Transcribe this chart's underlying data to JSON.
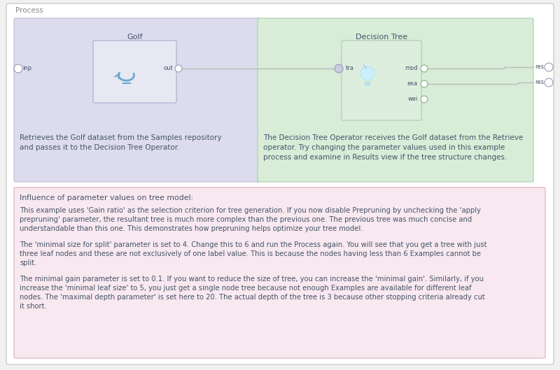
{
  "bg_color": "#f0f0f0",
  "outer_bg": "#ffffff",
  "outer_border": "#cccccc",
  "process_label": "Process",
  "process_label_color": "#888888",
  "left_panel_bg": "#dcdcee",
  "left_panel_border": "#bbbbcc",
  "right_panel_bg": "#d8ecd8",
  "right_panel_border": "#aaccaa",
  "golf_box_bg": "#e8e8f4",
  "golf_box_border": "#aaaacc",
  "golf_label": "Golf",
  "dt_box_bg": "#deeede",
  "dt_box_border": "#aaccaa",
  "dt_label": "Decision Tree",
  "pink_box_bg": "#f8e8f0",
  "pink_box_border": "#ddaabb",
  "text_color": "#445566",
  "text_color_blue": "#5577aa",
  "connector_color": "#bbbbbb",
  "port_fill_lavender": "#ccccdd",
  "port_fill_green": "#aaccaa",
  "port_stroke": "#9999bb",
  "icon_color": "#66aacc",
  "inp_label": "inp",
  "out_label": "out",
  "tra_label": "tra",
  "mod_label": "mod",
  "exa_label": "exa",
  "wei_label": "wei",
  "res1_label": "res",
  "res2_label": "res",
  "golf_desc1": "Retrieves the Golf dataset from the Samples repository",
  "golf_desc2": "and passes it to the Decision Tree Operator.",
  "dt_desc1": "The Decision Tree Operator receives the Golf dataset from the Retrieve",
  "dt_desc2": "operator. Try changing the parameter values used in this example",
  "dt_desc3": "process and examine in Results view if the tree structure changes.",
  "pink_title": "Influence of parameter values on tree model:",
  "pink_para1_lines": [
    "This example uses 'Gain ratio' as the selection criterion for tree generation. If you now disable Prepruning by unchecking the 'apply",
    "prepruning' parameter, the resultant tree is much more complex than the previous one. The previous tree was much concise and",
    "understandable than this one. This demonstrates how prepruning helps optimize your tree model."
  ],
  "pink_para2_lines": [
    "The 'minimal size for split' parameter is set to 4. Change this to 6 and run the Process again. You will see that you get a tree with just",
    "three leaf nodes and these are not exclusively of one label value. This is because the nodes having less than 6 Examples cannot be",
    "split."
  ],
  "pink_para3_lines": [
    "The minimal gain parameter is set to 0.1. If you want to reduce the size of tree, you can increase the 'minimal gain'. Similarly, if you",
    "increase the 'minimal leaf size' to 5, you just get a single node tree because not enough Examples are available for different leaf",
    "nodes. The 'maximal depth parameter' is set here to 20. The actual depth of the tree is 3 because other stopping criteria already cut",
    "it short."
  ]
}
